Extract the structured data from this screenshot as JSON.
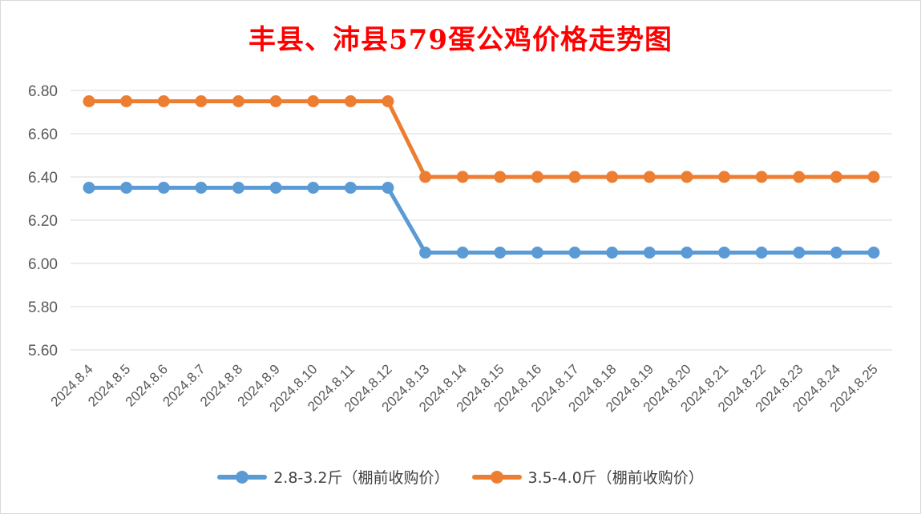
{
  "chart_data": {
    "type": "line",
    "title": "丰县、沛县579蛋公鸡价格走势图",
    "categories": [
      "2024.8.4",
      "2024.8.5",
      "2024.8.6",
      "2024.8.7",
      "2024.8.8",
      "2024.8.9",
      "2024.8.10",
      "2024.8.11",
      "2024.8.12",
      "2024.8.13",
      "2024.8.14",
      "2024.8.15",
      "2024.8.16",
      "2024.8.17",
      "2024.8.18",
      "2024.8.19",
      "2024.8.20",
      "2024.8.21",
      "2024.8.22",
      "2024.8.23",
      "2024.8.24",
      "2024.8.25"
    ],
    "series": [
      {
        "name": "2.8-3.2斤（棚前收购价）",
        "color": "#5b9bd5",
        "values": [
          6.35,
          6.35,
          6.35,
          6.35,
          6.35,
          6.35,
          6.35,
          6.35,
          6.35,
          6.05,
          6.05,
          6.05,
          6.05,
          6.05,
          6.05,
          6.05,
          6.05,
          6.05,
          6.05,
          6.05,
          6.05,
          6.05
        ]
      },
      {
        "name": "3.5-4.0斤（棚前收购价）",
        "color": "#ed7d31",
        "values": [
          6.75,
          6.75,
          6.75,
          6.75,
          6.75,
          6.75,
          6.75,
          6.75,
          6.75,
          6.4,
          6.4,
          6.4,
          6.4,
          6.4,
          6.4,
          6.4,
          6.4,
          6.4,
          6.4,
          6.4,
          6.4,
          6.4
        ]
      }
    ],
    "ylim": [
      5.6,
      6.8
    ],
    "yticks": [
      "5.60",
      "5.80",
      "6.00",
      "6.20",
      "6.40",
      "6.60",
      "6.80"
    ],
    "grid": true,
    "legend_position": "bottom"
  }
}
